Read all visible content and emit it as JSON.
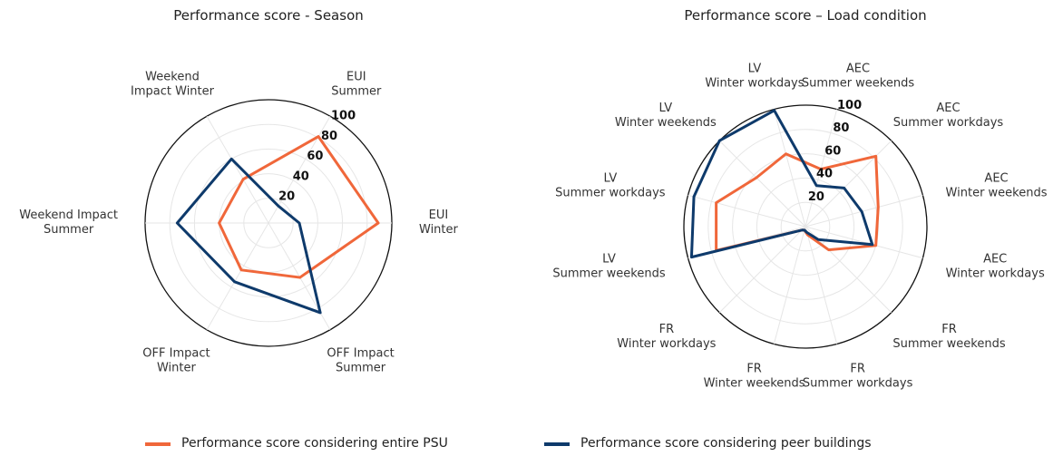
{
  "chart_data": [
    {
      "type": "radar",
      "title": "Performance score - Season",
      "categories": [
        "EUI\nSummer",
        "EUI\nWinter",
        "OFF Impact\nSummer",
        "OFF Impact\nWinter",
        "Weekend Impact\nSummer",
        "Weekend\nImpact Winter"
      ],
      "series": [
        {
          "name": "Performance score considering entire PSU",
          "color": "#f0673a",
          "values": [
            81,
            89,
            51,
            44,
            40,
            41
          ]
        },
        {
          "name": "Performance score considering peer buildings",
          "color": "#0e3a6b",
          "values": [
            16,
            25,
            84,
            55,
            74,
            60
          ]
        }
      ],
      "rlim": [
        0,
        100
      ],
      "rticks": [
        20,
        40,
        60,
        80,
        100
      ]
    },
    {
      "type": "radar",
      "title": "Performance score – Load condition",
      "categories": [
        "AEC\nSummer weekends",
        "AEC\nSummer workdays",
        "AEC\nWinter weekends",
        "AEC\nWinter workdays",
        "FR\nSummer weekends",
        "FR\nSummer workdays",
        "FR\nWinter weekends",
        "FR\nWinter workdays",
        "LV\nSummer weekends",
        "LV\nSummer workdays",
        "LV\nWinter weekends",
        "LV\nWinter workdays"
      ],
      "series": [
        {
          "color": "#f0673a",
          "values": [
            49,
            82,
            62,
            60,
            27,
            7,
            3,
            4,
            76,
            76,
            57,
            62
          ]
        },
        {
          "color": "#0e3a6b",
          "values": [
            35,
            45,
            48,
            57,
            15,
            5,
            3,
            4,
            97,
            95,
            100,
            99
          ]
        }
      ],
      "rlim": [
        0,
        100
      ],
      "rticks": [
        20,
        40,
        60,
        80,
        100
      ]
    }
  ]
}
